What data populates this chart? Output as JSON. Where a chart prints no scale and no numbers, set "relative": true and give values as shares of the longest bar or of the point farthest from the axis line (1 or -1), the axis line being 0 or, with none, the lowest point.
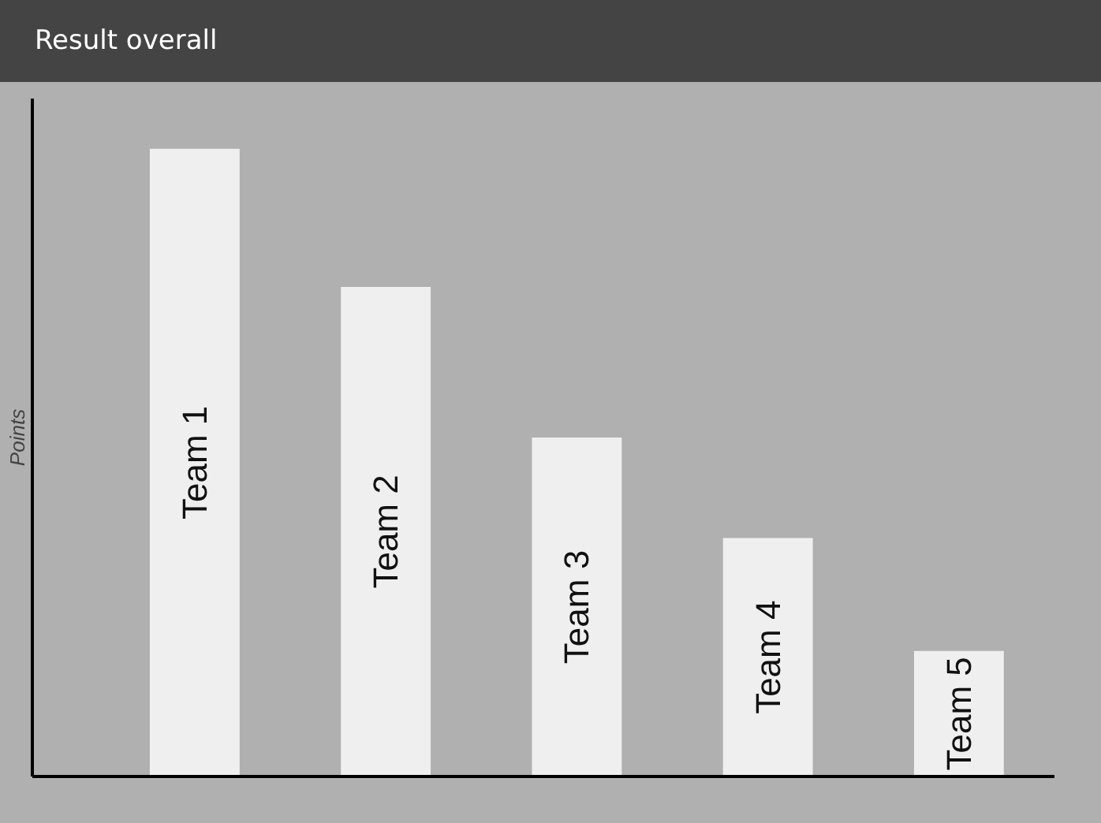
{
  "chart_data": {
    "type": "bar",
    "title": "Result overall",
    "ylabel": "Points",
    "relative": true,
    "categories": [
      "Team 1",
      "Team 2",
      "Team 3",
      "Team 4",
      "Team 5"
    ],
    "values": [
      1,
      0.78,
      0.54,
      0.38,
      0.2
    ],
    "color": "#efefef"
  }
}
